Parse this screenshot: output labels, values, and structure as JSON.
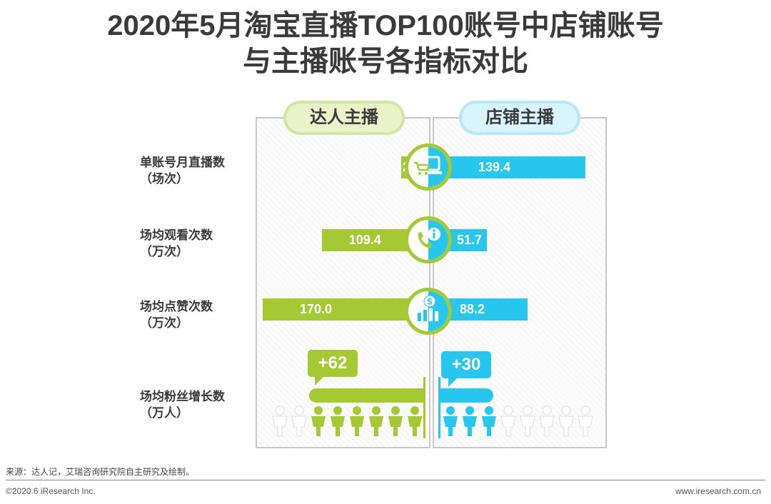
{
  "title_line1": "2020年5月淘宝直播TOP100账号中店铺账号",
  "title_line2": "与主播账号各指标对比",
  "chart_data": {
    "type": "bar",
    "title": "2020年5月淘宝直播TOP100账号中店铺账号与主播账号各指标对比",
    "series": [
      {
        "name": "达人主播",
        "color": "#a4c932",
        "values": [
          28.0,
          109.4,
          170.0
        ]
      },
      {
        "name": "店铺主播",
        "color": "#27c6ef",
        "values": [
          139.4,
          51.7,
          88.2
        ]
      }
    ],
    "categories": [
      {
        "line1": "单账号月直播数",
        "line2": "（场次）",
        "icon": "computer-cart-icon"
      },
      {
        "line1": "场均观看次数",
        "line2": "（万次）",
        "icon": "phone-info-icon"
      },
      {
        "line1": "场均点赞次数",
        "line2": "（万次）",
        "icon": "money-chart-icon"
      }
    ],
    "max_value": 170.0,
    "fans": {
      "label_line1": "场均粉丝增长数",
      "label_line2": "（万人）",
      "left_label": "+62",
      "right_label": "+30",
      "left_value": 62,
      "right_value": 30,
      "left_filled": 6,
      "left_total": 8,
      "right_filled": 3,
      "right_total": 8
    }
  },
  "footer": {
    "source": "来源：达人记，艾瑞咨询研究院自主研究及绘制。",
    "copyright": "©2020.6 iResearch Inc.",
    "website": "www.iresearch.com.cn"
  }
}
